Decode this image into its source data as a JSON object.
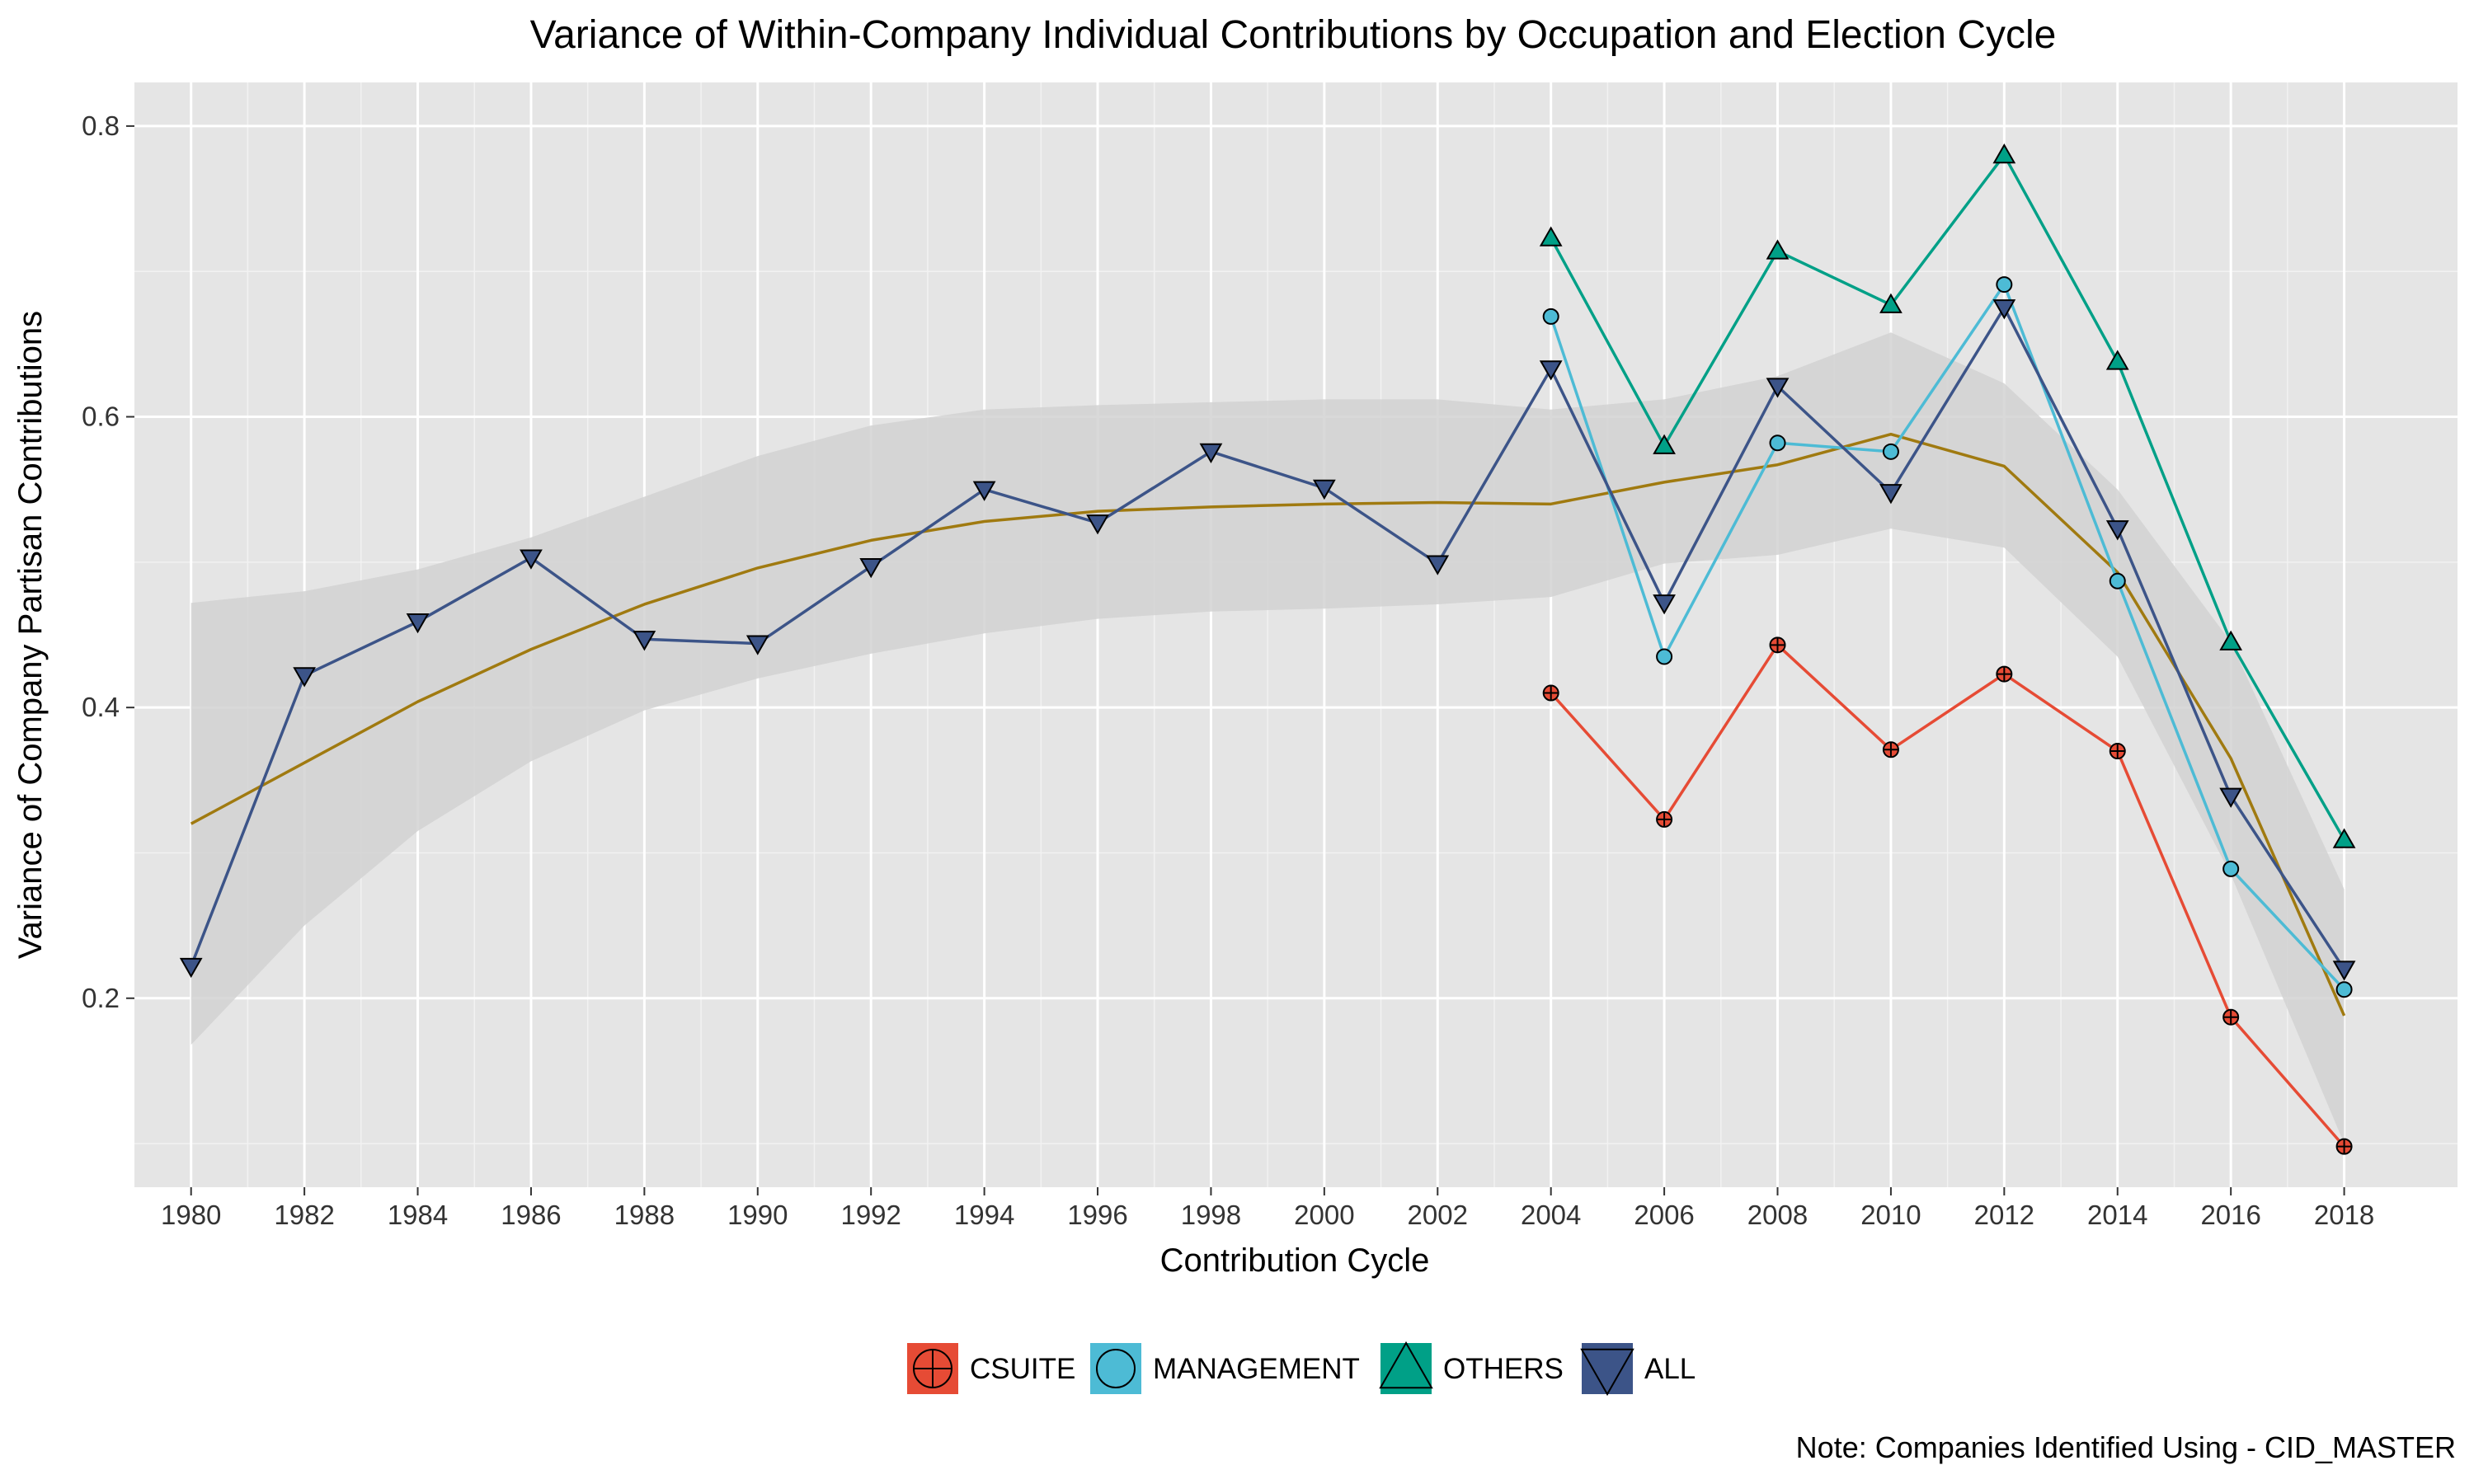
{
  "chart_data": {
    "type": "line",
    "title": "Variance of Within-Company Individual Contributions by Occupation and Election Cycle",
    "xlabel": "Contribution Cycle",
    "ylabel": "Variance of Company Partisan Contributions",
    "caption": "Note: Companies Identified Using - CID_MASTER",
    "xlim": [
      1979,
      2020
    ],
    "ylim": [
      0.07,
      0.83
    ],
    "x_ticks": [
      "1980",
      "1982",
      "1984",
      "1986",
      "1988",
      "1990",
      "1992",
      "1994",
      "1996",
      "1998",
      "2000",
      "2002",
      "2004",
      "2006",
      "2008",
      "2010",
      "2012",
      "2014",
      "2016",
      "2018"
    ],
    "y_ticks": [
      "0.2",
      "0.4",
      "0.6",
      "0.8"
    ],
    "grid": true,
    "legend_position": "bottom",
    "series": [
      {
        "name": "CSUITE",
        "color": "#E64B35",
        "shape": "circle-plus",
        "x": [
          2004,
          2006,
          2008,
          2010,
          2012,
          2014,
          2016,
          2018
        ],
        "values": [
          0.41,
          0.323,
          0.443,
          0.371,
          0.423,
          0.37,
          0.187,
          0.098
        ]
      },
      {
        "name": "MANAGEMENT",
        "color": "#4DBBD5",
        "shape": "circle",
        "x": [
          2004,
          2006,
          2008,
          2010,
          2012,
          2014,
          2016,
          2018
        ],
        "values": [
          0.669,
          0.435,
          0.582,
          0.576,
          0.691,
          0.487,
          0.289,
          0.206
        ]
      },
      {
        "name": "OTHERS",
        "color": "#00A087",
        "shape": "triangle-up",
        "x": [
          2004,
          2006,
          2008,
          2010,
          2012,
          2014,
          2016,
          2018
        ],
        "values": [
          0.723,
          0.58,
          0.714,
          0.677,
          0.78,
          0.638,
          0.445,
          0.309
        ]
      },
      {
        "name": "ALL",
        "color": "#3C5488",
        "shape": "triangle-down",
        "x": [
          1980,
          1982,
          1984,
          1986,
          1988,
          1990,
          1992,
          1994,
          1996,
          1998,
          2000,
          2002,
          2004,
          2006,
          2008,
          2010,
          2012,
          2014,
          2016,
          2018
        ],
        "values": [
          0.222,
          0.422,
          0.459,
          0.503,
          0.447,
          0.444,
          0.497,
          0.55,
          0.527,
          0.576,
          0.551,
          0.499,
          0.633,
          0.472,
          0.621,
          0.548,
          0.675,
          0.523,
          0.339,
          0.22
        ]
      }
    ],
    "smooth": {
      "color": "#A07A10",
      "band_color": "#D2D2D2",
      "x": [
        1980,
        1982,
        1984,
        1986,
        1988,
        1990,
        1992,
        1994,
        1996,
        1998,
        2000,
        2002,
        2004,
        2006,
        2008,
        2010,
        2012,
        2014,
        2016,
        2018
      ],
      "fit": [
        0.32,
        0.362,
        0.404,
        0.44,
        0.471,
        0.496,
        0.515,
        0.528,
        0.535,
        0.538,
        0.54,
        0.541,
        0.54,
        0.555,
        0.567,
        0.588,
        0.566,
        0.493,
        0.365,
        0.188
      ],
      "lower": [
        0.168,
        0.25,
        0.315,
        0.363,
        0.398,
        0.42,
        0.437,
        0.451,
        0.461,
        0.466,
        0.468,
        0.471,
        0.476,
        0.499,
        0.505,
        0.523,
        0.51,
        0.435,
        0.285,
        0.1
      ],
      "upper": [
        0.472,
        0.48,
        0.495,
        0.517,
        0.545,
        0.573,
        0.594,
        0.605,
        0.608,
        0.61,
        0.612,
        0.612,
        0.605,
        0.612,
        0.628,
        0.658,
        0.623,
        0.55,
        0.445,
        0.275
      ]
    }
  }
}
